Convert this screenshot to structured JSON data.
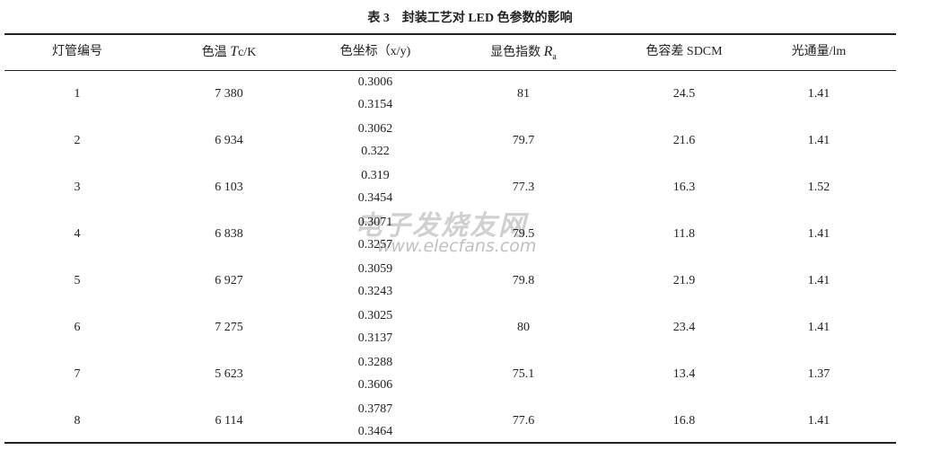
{
  "table": {
    "title": "表 3　封装工艺对 LED 色参数的影响",
    "headers": [
      [
        "灯管编号"
      ],
      [
        "色温 ",
        "T",
        "c/K"
      ],
      [
        "色坐标（x/y)"
      ],
      [
        "显色指数 ",
        "R",
        "a"
      ],
      [
        "色容差 SDCM"
      ],
      [
        "光通量/lm"
      ]
    ],
    "rows": [
      [
        "1",
        "7 380",
        "0.3006",
        "0.3154",
        "81",
        "24.5",
        "1.41"
      ],
      [
        "2",
        "6 934",
        "0.3062",
        "0.322",
        "79.7",
        "21.6",
        "1.41"
      ],
      [
        "3",
        "6 103",
        "0.319",
        "0.3454",
        "77.3",
        "16.3",
        "1.52"
      ],
      [
        "4",
        "6 838",
        "0.3071",
        "0.3257",
        "79.5",
        "11.8",
        "1.41"
      ],
      [
        "5",
        "6 927",
        "0.3059",
        "0.3243",
        "79.8",
        "21.9",
        "1.41"
      ],
      [
        "6",
        "7 275",
        "0.3025",
        "0.3137",
        "80",
        "23.4",
        "1.41"
      ],
      [
        "7",
        "5 623",
        "0.3288",
        "0.3606",
        "75.1",
        "13.4",
        "1.37"
      ],
      [
        "8",
        "6 114",
        "0.3787",
        "0.3464",
        "77.6",
        "16.8",
        "1.41"
      ]
    ]
  },
  "watermark": {
    "logo": "电子发烧友网",
    "url": "www.elecfans.com"
  }
}
